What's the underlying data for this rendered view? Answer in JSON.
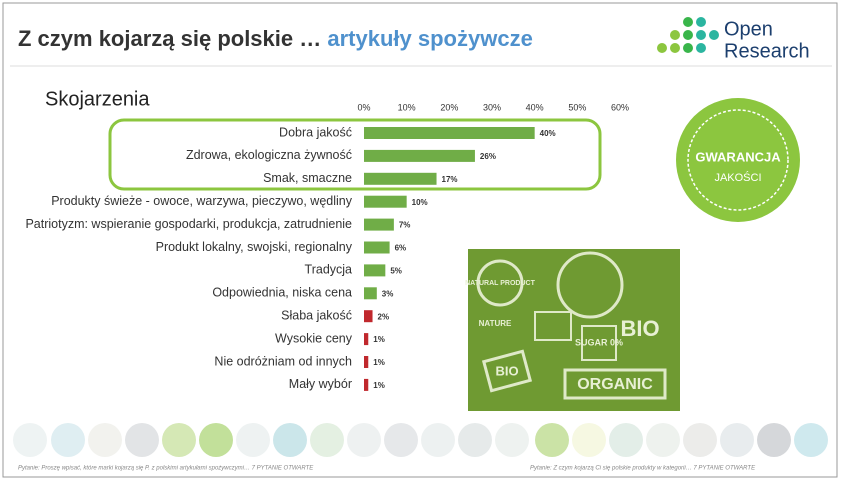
{
  "chart_data": {
    "type": "bar",
    "title": "Z czym kojarzą się polskie …",
    "title_highlight": "artykuły spożywcze",
    "subtitle": "Skojarzenia",
    "logo": [
      "Open",
      "Research"
    ],
    "badge": [
      "GWARANCJA",
      "JAKOŚCI"
    ],
    "image_texts": [
      "NATURAL PRODUCT",
      "NATURE",
      "SUGAR 0%",
      "BIO",
      "BIO",
      "ORGANIC"
    ],
    "categories": [
      "Dobra jakość",
      "Zdrowa, ekologiczna żywność",
      "Smak, smaczne",
      "Produkty świeże - owoce, warzywa, pieczywo, wędliny",
      "Patriotyzm: wspieranie gospodarki, produkcja, zatrudnienie",
      "Produkt lokalny, swojski, regionalny",
      "Tradycja",
      "Odpowiednia, niska cena",
      "Słaba jakość",
      "Wysokie ceny",
      "Nie odróżniam od innych",
      "Mały wybór"
    ],
    "values": [
      40,
      26,
      17,
      10,
      7,
      6,
      5,
      3,
      2,
      1,
      1,
      1
    ],
    "value_labels": [
      "40%",
      "26%",
      "17%",
      "10%",
      "7%",
      "6%",
      "5%",
      "3%",
      "2%",
      "1%",
      "1%",
      "1%"
    ],
    "colors": [
      "#70ad47",
      "#70ad47",
      "#70ad47",
      "#70ad47",
      "#70ad47",
      "#70ad47",
      "#70ad47",
      "#70ad47",
      "#c0282d",
      "#c0282d",
      "#c0282d",
      "#c0282d"
    ],
    "xlim": [
      0,
      60
    ],
    "xticks": [
      {
        "value": 0,
        "label": "0%"
      },
      {
        "value": 10,
        "label": "10%"
      },
      {
        "value": 20,
        "label": "20%"
      },
      {
        "value": 30,
        "label": "30%"
      },
      {
        "value": 40,
        "label": "40%"
      },
      {
        "value": 50,
        "label": "50%"
      },
      {
        "value": 60,
        "label": "60%"
      }
    ],
    "footnotes": [
      "Pytanie: Proszę wpisać, które marki kojarzą się P. z polskimi artykułami spożywczymi… 7 PYTANIE OTWARTE",
      "Pytanie: Z czym kojarzą Ci się polskie produkty w kategorii… 7 PYTANIE OTWARTE"
    ]
  }
}
